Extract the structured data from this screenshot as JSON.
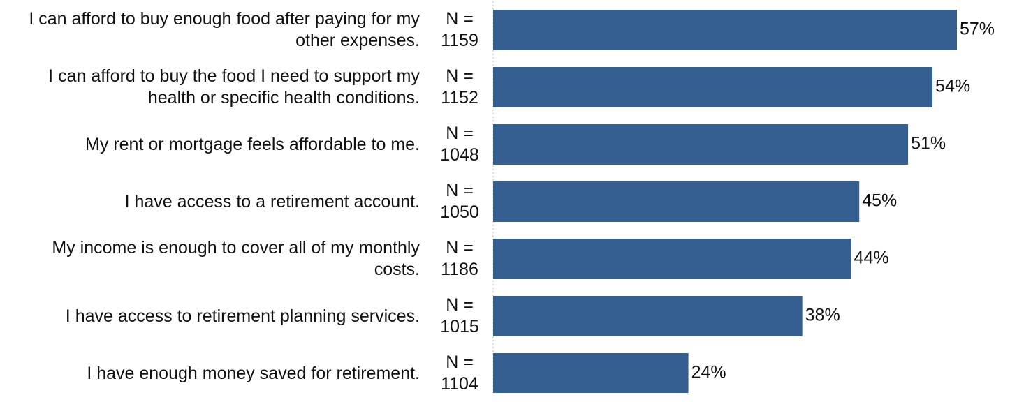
{
  "chart_data": {
    "type": "hbar",
    "categories": [
      "I can afford to buy enough food after paying for my other expenses.",
      "I can afford to buy the food I need to support my health or specific health conditions.",
      "My rent or mortgage feels affordable to me.",
      "I have access to a retirement account.",
      "My income is enough to cover all of my monthly costs.",
      "I have access to retirement planning services.",
      "I have enough money saved for retirement."
    ],
    "n_labels": [
      "N = 1159",
      "N = 1152",
      "N = 1048",
      "N = 1050",
      "N = 1186",
      "N = 1015",
      "N = 1104"
    ],
    "values": [
      57,
      54,
      51,
      45,
      44,
      38,
      24
    ],
    "value_labels": [
      "57%",
      "54%",
      "51%",
      "45%",
      "44%",
      "38%",
      "24%"
    ],
    "color": "#355e91"
  }
}
